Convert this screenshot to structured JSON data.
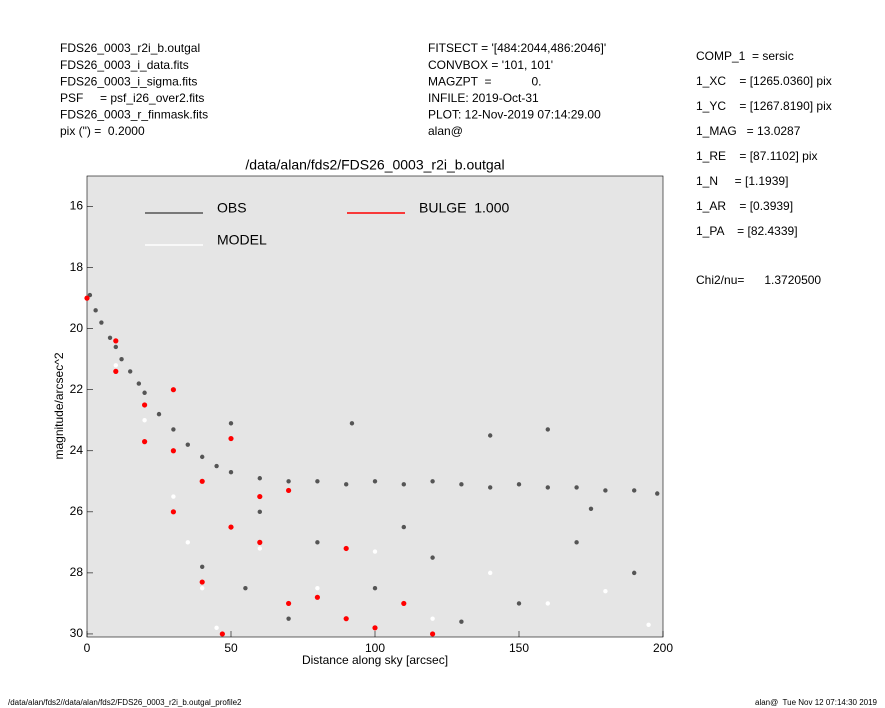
{
  "header": {
    "left": [
      "FDS26_0003_r2i_b.outgal",
      "FDS26_0003_i_data.fits",
      "FDS26_0003_i_sigma.fits",
      "PSF     = psf_i26_over2.fits",
      "FDS26_0003_r_finmask.fits",
      "pix (\") =  0.2000"
    ],
    "middle": [
      "FITSECT = '[484:2044,486:2046]'",
      "CONVBOX = '101, 101'",
      "MAGZPT  =            0.",
      "INFILE: 2019-Oct-31",
      "PLOT: 12-Nov-2019 07:14:29.00",
      "alan@"
    ],
    "params": [
      "COMP_1  = sersic",
      "1_XC    = [1265.0360] pix",
      "1_YC    = [1267.8190] pix",
      "1_MAG   = 13.0287",
      "1_RE    = [87.1102] pix",
      "1_N     = [1.1939]",
      "1_AR    = [0.3939]",
      "1_PA    = [82.4339]"
    ],
    "chi2": "Chi2/nu=      1.3720500"
  },
  "footer": {
    "left": "/data/alan/fds2//data/alan/fds2/FDS26_0003_r2i_b.outgal_profile2",
    "right": "alan@  Tue Nov 12 07:14:30 2019"
  },
  "chart_data": {
    "type": "scatter",
    "title": "/data/alan/fds2/FDS26_0003_r2i_b.outgal",
    "x_label": "Distance along sky [arcsec]",
    "y_label": "magnitude/arcsec^2",
    "xlim": [
      0,
      200
    ],
    "ylim": [
      15,
      30.1
    ],
    "y_inverted": true,
    "xticks": [
      0,
      50,
      100,
      150,
      200
    ],
    "yticks": [
      16,
      18,
      20,
      22,
      24,
      26,
      28,
      30
    ],
    "background": "#e5e5e5",
    "series": [
      {
        "name": "OBS",
        "color": "#555555",
        "label_color": "#999999",
        "x": [
          1,
          3,
          5,
          8,
          10,
          12,
          15,
          18,
          20,
          25,
          30,
          35,
          40,
          45,
          50,
          60,
          70,
          80,
          90,
          100,
          110,
          120,
          130,
          140,
          150,
          160,
          170,
          180,
          190,
          198,
          92,
          50,
          140,
          160,
          60,
          80,
          100,
          120,
          150,
          170,
          190,
          130,
          110,
          175,
          55,
          40,
          70
        ],
        "values": [
          18.9,
          19.4,
          19.8,
          20.3,
          20.6,
          21.0,
          21.4,
          21.8,
          22.1,
          22.8,
          23.3,
          23.8,
          24.2,
          24.5,
          24.7,
          24.9,
          25.0,
          25.0,
          25.1,
          25.0,
          25.1,
          25.0,
          25.1,
          25.2,
          25.1,
          25.2,
          25.2,
          25.3,
          25.3,
          25.4,
          23.1,
          23.1,
          23.5,
          23.3,
          26.0,
          27.0,
          28.5,
          27.5,
          29.0,
          27.0,
          28.0,
          29.6,
          26.5,
          25.9,
          28.5,
          27.8,
          29.5
        ]
      },
      {
        "name": "MODEL",
        "color": "#ffffff",
        "label_color": "#ffffff",
        "x": [
          0,
          10,
          20,
          30,
          35,
          40,
          45,
          60,
          80,
          100,
          140,
          160,
          180,
          195,
          120
        ],
        "values": [
          19.0,
          21.2,
          23.0,
          25.5,
          27.0,
          28.5,
          29.8,
          27.2,
          28.5,
          27.3,
          28.0,
          29.0,
          28.6,
          29.7,
          29.5
        ]
      },
      {
        "name": "BULGE  1.000",
        "color": "#ff0000",
        "label_color": "#ff0000",
        "x": [
          0,
          10,
          20,
          30,
          40,
          47,
          10,
          30,
          50,
          70,
          90,
          110,
          120,
          20,
          40,
          60,
          80,
          30,
          50,
          70,
          90,
          60,
          100
        ],
        "values": [
          19.0,
          21.4,
          23.7,
          26.0,
          28.3,
          30.0,
          20.4,
          22.0,
          23.6,
          25.3,
          27.2,
          29.0,
          30.0,
          22.5,
          25.0,
          27.0,
          28.8,
          24.0,
          26.5,
          29.0,
          29.5,
          25.5,
          29.8
        ]
      }
    ]
  }
}
